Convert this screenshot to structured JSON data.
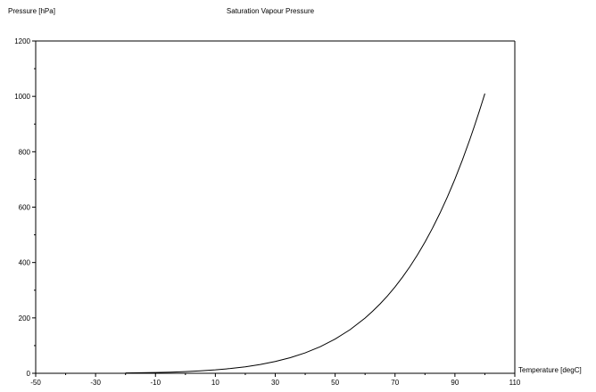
{
  "chart_data": {
    "type": "line",
    "title": "Saturation Vapour Pressure",
    "xlabel": "Temperature [degC]",
    "ylabel": "Pressure [hPa]",
    "xlim": [
      -50,
      110
    ],
    "ylim": [
      0,
      1200
    ],
    "xticks": [
      -50,
      -30,
      -10,
      10,
      30,
      50,
      70,
      90,
      110
    ],
    "yticks": [
      0,
      200,
      400,
      600,
      800,
      1000,
      1200
    ],
    "grid": false,
    "legend": "none",
    "line_color": "#000000",
    "series": [
      {
        "x": [
          -20,
          -15,
          -10,
          -5,
          0,
          5,
          10,
          15,
          20,
          25,
          30,
          35,
          40,
          45,
          50,
          55,
          60,
          62.5,
          65,
          67.5,
          70,
          72.5,
          75,
          77.5,
          80,
          82.5,
          85,
          87.5,
          90,
          92.5,
          95,
          96.5,
          98,
          99,
          100
        ],
        "y": [
          1.3,
          1.9,
          2.9,
          4.2,
          6.1,
          8.7,
          12.3,
          17.1,
          23.4,
          31.7,
          42.5,
          56.3,
          73.8,
          95.9,
          123.5,
          157.6,
          199.5,
          223.9,
          250.5,
          279.8,
          312.0,
          347.2,
          385.7,
          427.9,
          473.8,
          523.8,
          578.2,
          637.1,
          701.0,
          770.2,
          844.9,
          892.3,
          941.7,
          975.6,
          1010.0
        ]
      }
    ]
  }
}
